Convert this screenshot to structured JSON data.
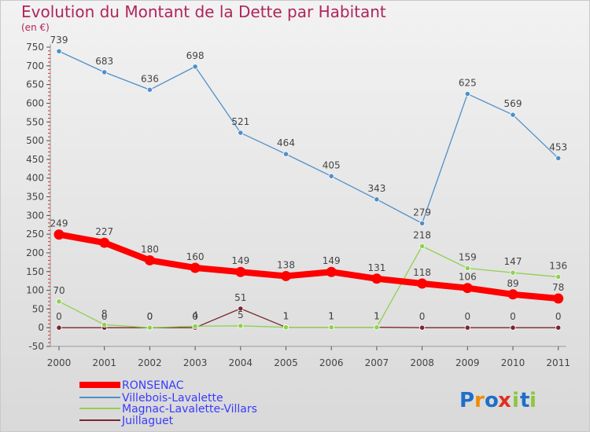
{
  "chart_data": {
    "type": "line",
    "title": "Evolution du Montant de la Dette par Habitant",
    "unit_label": "(en €)",
    "x": [
      "2000",
      "2001",
      "2002",
      "2003",
      "2004",
      "2005",
      "2006",
      "2007",
      "2008",
      "2009",
      "2010",
      "2011"
    ],
    "ylim": [
      -50,
      750
    ],
    "yticks": [
      -50,
      0,
      50,
      100,
      150,
      200,
      250,
      300,
      350,
      400,
      450,
      500,
      550,
      600,
      650,
      700,
      750
    ],
    "grid": false,
    "legend_placement": "bottom-left",
    "series": [
      {
        "name": "RONSENAC",
        "color": "#ff0000",
        "values": [
          249,
          227,
          180,
          160,
          149,
          138,
          149,
          131,
          118,
          106,
          89,
          78
        ],
        "labels": [
          "249",
          "227",
          "180",
          "160",
          "149",
          "138",
          "149",
          "131",
          "118",
          "106",
          "89",
          "78"
        ]
      },
      {
        "name": "Villebois-Lavalette",
        "color": "#4f8fca",
        "values": [
          739,
          683,
          636,
          698,
          521,
          464,
          405,
          343,
          279,
          625,
          569,
          453
        ],
        "labels": [
          "739",
          "683",
          "636",
          "698",
          "521",
          "464",
          "405",
          "343",
          "279",
          "625",
          "569",
          "453"
        ]
      },
      {
        "name": "Magnac-Lavalette-Villars",
        "color": "#8fd14f",
        "values": [
          70,
          8,
          0,
          4,
          5,
          1,
          1,
          1,
          218,
          159,
          147,
          136
        ],
        "labels": [
          "70",
          "8",
          "0",
          "4",
          "5",
          "1",
          "1",
          "1",
          "218",
          "159",
          "147",
          "136"
        ]
      },
      {
        "name": "Juillaguet",
        "color": "#7a2630",
        "values": [
          0,
          0,
          0,
          0,
          51,
          1,
          1,
          1,
          0,
          0,
          0,
          0
        ],
        "labels": [
          "0",
          "0",
          "0",
          "0",
          "51",
          "1",
          "1",
          "1",
          "0",
          "0",
          "0",
          "0"
        ]
      }
    ]
  },
  "logo": {
    "text": "Proxiti",
    "letters": [
      "P",
      "r",
      "o",
      "x",
      "i",
      "t",
      "i"
    ],
    "colors": [
      "#1e6fc8",
      "#f08c00",
      "#1e6fc8",
      "#e03020",
      "#8cc63f",
      "#1e6fc8",
      "#8cc63f"
    ]
  }
}
